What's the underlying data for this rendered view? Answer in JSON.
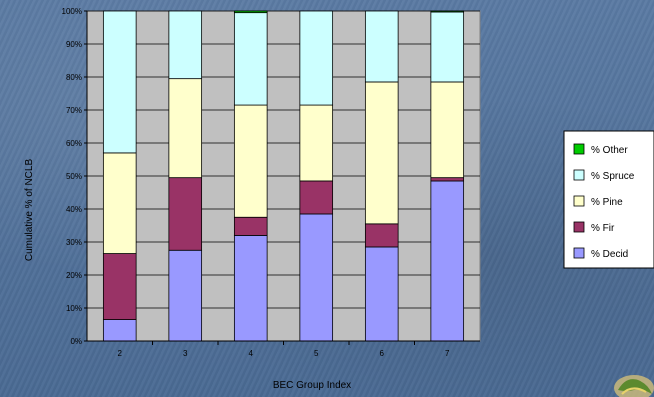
{
  "chart_data": {
    "type": "bar",
    "stacked": true,
    "categories": [
      "2",
      "3",
      "4",
      "5",
      "6",
      "7"
    ],
    "series": [
      {
        "name": "% Decid",
        "color": "#9999ff",
        "values": [
          6.5,
          27.5,
          32,
          38.5,
          28.5,
          48.5
        ]
      },
      {
        "name": "% Fir",
        "color": "#993366",
        "values": [
          20,
          22,
          5.5,
          10,
          7,
          1
        ]
      },
      {
        "name": "% Pine",
        "color": "#ffffcc",
        "values": [
          30.5,
          30,
          34,
          23,
          43,
          29
        ]
      },
      {
        "name": "% Spruce",
        "color": "#ccffff",
        "values": [
          43,
          20.5,
          28,
          28.5,
          21.5,
          21.2
        ]
      },
      {
        "name": "% Other",
        "color": "#00cc00",
        "values": [
          0,
          0,
          0.5,
          0,
          0,
          0.3
        ]
      }
    ],
    "ylim": [
      0,
      100
    ],
    "yticks": [
      "0%",
      "10%",
      "20%",
      "30%",
      "40%",
      "50%",
      "60%",
      "70%",
      "80%",
      "90%",
      "100%"
    ],
    "xlabel": "BEC Group Index",
    "ylabel": "Cumulative % of NCLB",
    "grid": true,
    "legend_placement": "right",
    "legend_order": [
      "% Other",
      "% Spruce",
      "% Pine",
      "% Fir",
      "% Decid"
    ]
  }
}
